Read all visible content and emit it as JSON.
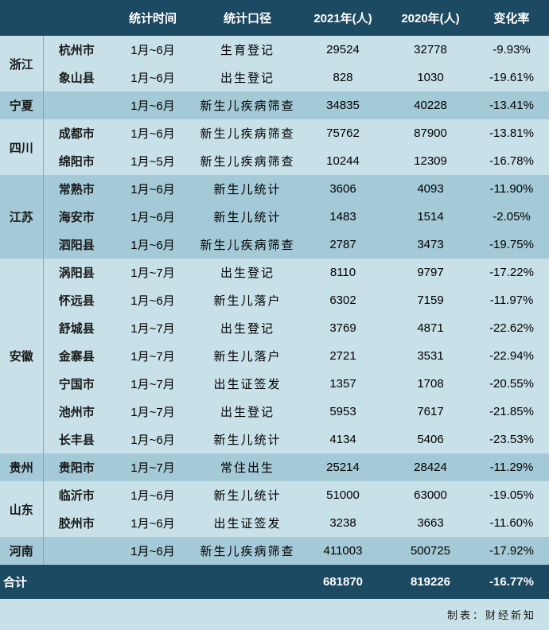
{
  "header": [
    "",
    "",
    "统计时间",
    "统计口径",
    "2021年(人)",
    "2020年(人)",
    "变化率"
  ],
  "rows": [
    {
      "province": "浙江",
      "city": "杭州市",
      "period": "1月~6月",
      "caliber": "生育登记",
      "y2021": "29524",
      "y2020": "32778",
      "change": "-9.93%",
      "rowspan": 2,
      "cls": "row-even"
    },
    {
      "province": "",
      "city": "象山县",
      "period": "1月~6月",
      "caliber": "出生登记",
      "y2021": "828",
      "y2020": "1030",
      "change": "-19.61%",
      "cls": "row-even"
    },
    {
      "province": "宁夏",
      "city": "",
      "period": "1月~6月",
      "caliber": "新生儿疾病筛查",
      "y2021": "34835",
      "y2020": "40228",
      "change": "-13.41%",
      "rowspan": 1,
      "cls": "row-odd"
    },
    {
      "province": "四川",
      "city": "成都市",
      "period": "1月~6月",
      "caliber": "新生儿疾病筛查",
      "y2021": "75762",
      "y2020": "87900",
      "change": "-13.81%",
      "rowspan": 2,
      "cls": "row-even"
    },
    {
      "province": "",
      "city": "绵阳市",
      "period": "1月~5月",
      "caliber": "新生儿疾病筛查",
      "y2021": "10244",
      "y2020": "12309",
      "change": "-16.78%",
      "cls": "row-even"
    },
    {
      "province": "江苏",
      "city": "常熟市",
      "period": "1月~6月",
      "caliber": "新生儿统计",
      "y2021": "3606",
      "y2020": "4093",
      "change": "-11.90%",
      "rowspan": 3,
      "cls": "row-odd"
    },
    {
      "province": "",
      "city": "海安市",
      "period": "1月~6月",
      "caliber": "新生儿统计",
      "y2021": "1483",
      "y2020": "1514",
      "change": "-2.05%",
      "cls": "row-odd"
    },
    {
      "province": "",
      "city": "泗阳县",
      "period": "1月~6月",
      "caliber": "新生儿疾病筛查",
      "y2021": "2787",
      "y2020": "3473",
      "change": "-19.75%",
      "cls": "row-odd"
    },
    {
      "province": "安徽",
      "city": "涡阳县",
      "period": "1月~7月",
      "caliber": "出生登记",
      "y2021": "8110",
      "y2020": "9797",
      "change": "-17.22%",
      "rowspan": 7,
      "cls": "row-even"
    },
    {
      "province": "",
      "city": "怀远县",
      "period": "1月~6月",
      "caliber": "新生儿落户",
      "y2021": "6302",
      "y2020": "7159",
      "change": "-11.97%",
      "cls": "row-even"
    },
    {
      "province": "",
      "city": "舒城县",
      "period": "1月~7月",
      "caliber": "出生登记",
      "y2021": "3769",
      "y2020": "4871",
      "change": "-22.62%",
      "cls": "row-even"
    },
    {
      "province": "",
      "city": "金寨县",
      "period": "1月~7月",
      "caliber": "新生儿落户",
      "y2021": "2721",
      "y2020": "3531",
      "change": "-22.94%",
      "cls": "row-even"
    },
    {
      "province": "",
      "city": "宁国市",
      "period": "1月~7月",
      "caliber": "出生证签发",
      "y2021": "1357",
      "y2020": "1708",
      "change": "-20.55%",
      "cls": "row-even"
    },
    {
      "province": "",
      "city": "池州市",
      "period": "1月~7月",
      "caliber": "出生登记",
      "y2021": "5953",
      "y2020": "7617",
      "change": "-21.85%",
      "cls": "row-even"
    },
    {
      "province": "",
      "city": "长丰县",
      "period": "1月~6月",
      "caliber": "新生儿统计",
      "y2021": "4134",
      "y2020": "5406",
      "change": "-23.53%",
      "cls": "row-even"
    },
    {
      "province": "贵州",
      "city": "贵阳市",
      "period": "1月~7月",
      "caliber": "常住出生",
      "y2021": "25214",
      "y2020": "28424",
      "change": "-11.29%",
      "rowspan": 1,
      "cls": "row-odd"
    },
    {
      "province": "山东",
      "city": "临沂市",
      "period": "1月~6月",
      "caliber": "新生儿统计",
      "y2021": "51000",
      "y2020": "63000",
      "change": "-19.05%",
      "rowspan": 2,
      "cls": "row-even"
    },
    {
      "province": "",
      "city": "胶州市",
      "period": "1月~6月",
      "caliber": "出生证签发",
      "y2021": "3238",
      "y2020": "3663",
      "change": "-11.60%",
      "cls": "row-even"
    },
    {
      "province": "河南",
      "city": "",
      "period": "1月~6月",
      "caliber": "新生儿疾病筛查",
      "y2021": "411003",
      "y2020": "500725",
      "change": "-17.92%",
      "rowspan": 1,
      "cls": "row-odd"
    }
  ],
  "total": {
    "label": "合计",
    "y2021": "681870",
    "y2020": "819226",
    "change": "-16.77%"
  },
  "credit_label": "制表：",
  "credit_source": "财经新知"
}
